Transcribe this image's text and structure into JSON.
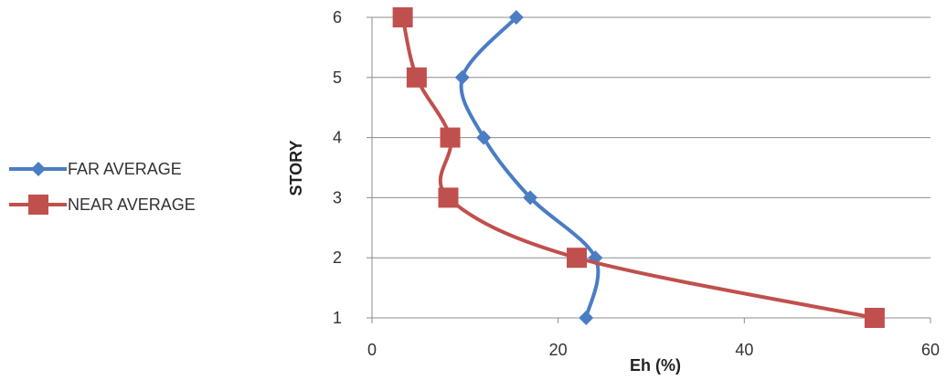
{
  "chart_data": {
    "type": "line",
    "xlabel": "Eh (%)",
    "ylabel": "STORY",
    "xlim": [
      0,
      60
    ],
    "ylim": [
      1,
      6
    ],
    "x_ticks": [
      "0",
      "20",
      "40",
      "60"
    ],
    "y_ticks": [
      "1",
      "2",
      "3",
      "4",
      "5",
      "6"
    ],
    "grid": "horizontal",
    "legend_position": "left",
    "series": [
      {
        "name": "FAR AVERAGE",
        "color": "#4a7dc4",
        "marker": "diamond",
        "points": [
          {
            "x": 23,
            "y": 1
          },
          {
            "x": 24,
            "y": 2
          },
          {
            "x": 17,
            "y": 3
          },
          {
            "x": 12,
            "y": 4
          },
          {
            "x": 9.7,
            "y": 5
          },
          {
            "x": 15.5,
            "y": 6
          }
        ]
      },
      {
        "name": "NEAR AVERAGE",
        "color": "#c0504d",
        "marker": "square",
        "points": [
          {
            "x": 54,
            "y": 1
          },
          {
            "x": 22,
            "y": 2
          },
          {
            "x": 8.2,
            "y": 3
          },
          {
            "x": 8.4,
            "y": 4
          },
          {
            "x": 4.8,
            "y": 5
          },
          {
            "x": 3.3,
            "y": 6
          }
        ]
      }
    ]
  }
}
